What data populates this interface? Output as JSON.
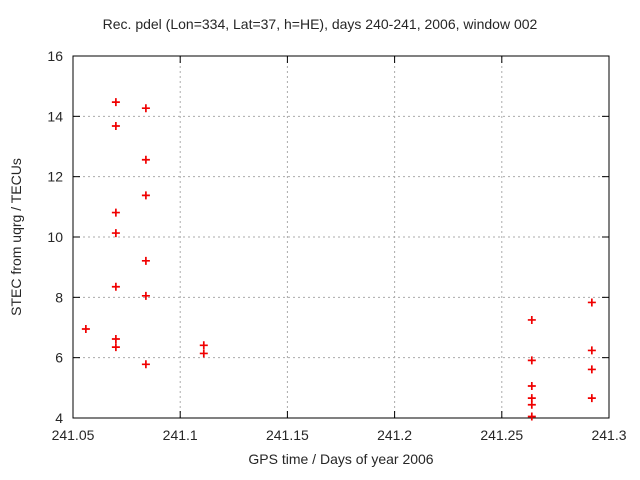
{
  "chart_data": {
    "type": "scatter",
    "title": "Rec. pdel (Lon=334, Lat=37, h=HE), days 240-241, 2006, window 002",
    "xlabel": "GPS time / Days of year 2006",
    "ylabel": "STEC from uqrg / TECUs",
    "xlim": [
      241.05,
      241.3
    ],
    "ylim": [
      4,
      16
    ],
    "xticks": [
      241.05,
      241.1,
      241.15,
      241.2,
      241.25,
      241.3
    ],
    "xtick_labels": [
      "241.05",
      "241.1",
      "241.15",
      "241.2",
      "241.25",
      "241.3"
    ],
    "yticks": [
      4,
      6,
      8,
      10,
      12,
      14,
      16
    ],
    "ytick_labels": [
      "4",
      "6",
      "8",
      "10",
      "12",
      "14",
      "16"
    ],
    "grid": true,
    "legend": "none",
    "marker": {
      "shape": "plus",
      "color": "#f00000",
      "size": 9
    },
    "series": [
      {
        "name": "STEC",
        "points": [
          [
            241.056,
            6.95
          ],
          [
            241.07,
            14.47
          ],
          [
            241.07,
            13.68
          ],
          [
            241.07,
            10.81
          ],
          [
            241.07,
            10.13
          ],
          [
            241.07,
            8.35
          ],
          [
            241.07,
            6.62
          ],
          [
            241.07,
            6.35
          ],
          [
            241.084,
            14.27
          ],
          [
            241.084,
            12.56
          ],
          [
            241.084,
            11.38
          ],
          [
            241.084,
            9.21
          ],
          [
            241.084,
            8.05
          ],
          [
            241.084,
            5.78
          ],
          [
            241.111,
            6.41
          ],
          [
            241.111,
            6.14
          ],
          [
            241.264,
            7.25
          ],
          [
            241.264,
            5.91
          ],
          [
            241.264,
            5.06
          ],
          [
            241.264,
            4.66
          ],
          [
            241.264,
            4.44
          ],
          [
            241.264,
            4.05
          ],
          [
            241.292,
            7.83
          ],
          [
            241.292,
            6.24
          ],
          [
            241.292,
            5.61
          ],
          [
            241.292,
            4.66
          ]
        ]
      }
    ]
  },
  "colors": {
    "background": "#ffffff",
    "axis": "#000000",
    "grid": "#ababab",
    "text": "#262626",
    "marker": "#f00000"
  }
}
